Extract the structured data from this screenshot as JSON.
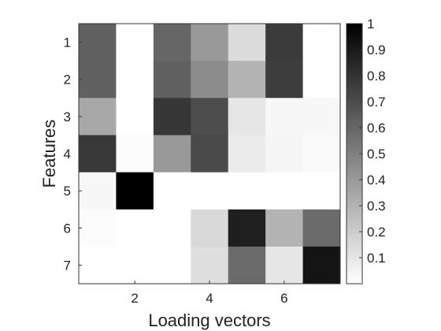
{
  "chart_data": {
    "type": "heatmap",
    "title": "",
    "xlabel": "Loading vectors",
    "ylabel": "Features",
    "x_ticks": [
      2,
      4,
      6
    ],
    "y_ticks": [
      1,
      2,
      3,
      4,
      5,
      6,
      7
    ],
    "columns": [
      1,
      2,
      3,
      4,
      5,
      6,
      7
    ],
    "rows": [
      1,
      2,
      3,
      4,
      5,
      6,
      7
    ],
    "values": [
      [
        0.62,
        0.0,
        0.6,
        0.4,
        0.14,
        0.77,
        0.0
      ],
      [
        0.62,
        0.0,
        0.62,
        0.45,
        0.3,
        0.76,
        0.0
      ],
      [
        0.34,
        0.0,
        0.79,
        0.7,
        0.1,
        0.03,
        0.03
      ],
      [
        0.78,
        0.01,
        0.4,
        0.71,
        0.08,
        0.04,
        0.02
      ],
      [
        0.03,
        1.0,
        0.0,
        0.0,
        0.0,
        0.0,
        0.0
      ],
      [
        0.01,
        0.0,
        0.0,
        0.15,
        0.88,
        0.3,
        0.58
      ],
      [
        0.0,
        0.0,
        0.0,
        0.13,
        0.58,
        0.1,
        0.92
      ]
    ],
    "colorbar": {
      "range": [
        0,
        1
      ],
      "ticks": [
        "0.1",
        "0.2",
        "0.3",
        "0.4",
        "0.5",
        "0.6",
        "0.7",
        "0.8",
        "0.9",
        "1"
      ],
      "colormap": "gray-reversed"
    },
    "grid": false
  }
}
